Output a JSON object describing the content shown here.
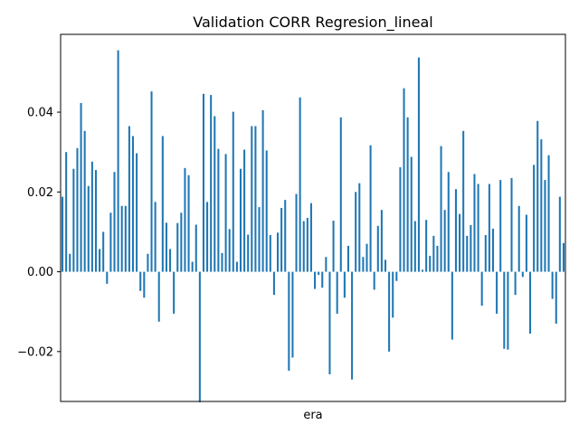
{
  "chart_data": {
    "type": "bar",
    "title": "Validation CORR Regresion_lineal",
    "xlabel": "era",
    "ylabel": "",
    "x_tick_labels_shown": false,
    "ylim": [
      -0.0325,
      0.0595
    ],
    "y_ticks": [
      -0.02,
      0.0,
      0.02,
      0.04
    ],
    "y_tick_labels": [
      "−0.02",
      "0.00",
      "0.02",
      "0.04"
    ],
    "bar_color": "#1f77b4",
    "grid": false,
    "series": [
      {
        "values": [
          0.0188,
          0.03,
          0.0045,
          0.0258,
          0.031,
          0.0423,
          0.0353,
          0.0215,
          0.0276,
          0.0255,
          0.0057,
          0.01,
          -0.003,
          0.0148,
          0.025,
          0.0555,
          0.0165,
          0.0165,
          0.0365,
          0.034,
          0.0297,
          -0.0048,
          -0.0065,
          0.0045,
          0.0452,
          0.0175,
          -0.0125,
          0.034,
          0.0123,
          0.0057,
          -0.0105,
          0.0122,
          0.0148,
          0.026,
          0.0242,
          0.0025,
          0.0118,
          -0.0327,
          0.0446,
          0.0175,
          0.0443,
          0.039,
          0.0308,
          0.0047,
          0.0295,
          0.0107,
          0.0401,
          0.0025,
          0.0258,
          0.0306,
          0.0093,
          0.0365,
          0.0365,
          0.0162,
          0.0405,
          0.0304,
          0.0092,
          -0.0058,
          0.0098,
          0.016,
          0.018,
          -0.0248,
          -0.0215,
          0.0195,
          0.0437,
          0.0127,
          0.0135,
          0.0172,
          -0.0043,
          -0.0008,
          -0.004,
          0.0037,
          -0.0257,
          0.0128,
          -0.0105,
          0.0387,
          -0.0065,
          0.0065,
          -0.027,
          0.02,
          0.0222,
          0.0037,
          0.007,
          0.0317,
          -0.0045,
          0.0115,
          0.0155,
          0.003,
          -0.02,
          -0.0115,
          -0.0023,
          0.0262,
          0.046,
          0.0387,
          0.0288,
          0.0127,
          0.0537,
          0.0005,
          0.013,
          0.004,
          0.009,
          0.0065,
          0.0315,
          0.0155,
          0.025,
          -0.017,
          0.0207,
          0.0145,
          0.0353,
          0.009,
          0.0117,
          0.0245,
          0.022,
          -0.0085,
          0.0092,
          0.022,
          0.0108,
          -0.0105,
          0.023,
          -0.0193,
          -0.0195,
          0.0235,
          -0.0058,
          0.0165,
          -0.0013,
          0.0143,
          -0.0155,
          0.0268,
          0.0378,
          0.0332,
          0.023,
          0.0292,
          -0.0068,
          -0.013,
          0.0188,
          0.0072
        ]
      }
    ]
  }
}
